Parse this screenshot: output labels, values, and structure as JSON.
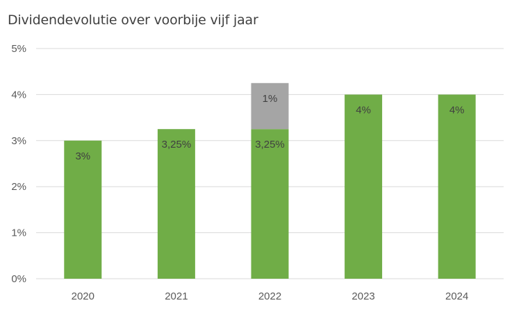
{
  "chart_data": {
    "type": "bar",
    "stacked": true,
    "title": "Dividendevolutie over voorbije vijf jaar",
    "categories": [
      "2020",
      "2021",
      "2022",
      "2023",
      "2024"
    ],
    "series": [
      {
        "values": [
          3,
          3.25,
          3.25,
          4,
          4
        ],
        "labels": [
          "3%",
          "3,25%",
          "3,25%",
          "4%",
          "4%"
        ],
        "color": "#70ad47"
      },
      {
        "values": [
          0,
          0,
          1,
          0,
          0
        ],
        "labels": [
          "",
          "",
          "1%",
          "",
          ""
        ],
        "color": "#a5a5a5"
      }
    ],
    "ylim": [
      0,
      5
    ],
    "yticks": [
      "0%",
      "1%",
      "2%",
      "3%",
      "4%",
      "5%"
    ],
    "ytick_values": [
      0,
      1,
      2,
      3,
      4,
      5
    ],
    "grid": true,
    "gridline_color": "#d9d9d9",
    "legend": "none"
  }
}
